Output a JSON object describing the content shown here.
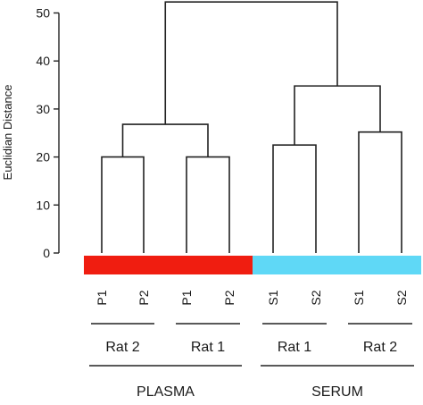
{
  "chart_data": {
    "type": "dendrogram",
    "ylabel": "Euclidian Distance",
    "ylim": [
      0,
      50
    ],
    "yticks": [
      0,
      10,
      20,
      30,
      40,
      50
    ],
    "leaves": [
      "P1",
      "P2",
      "P1",
      "P2",
      "S1",
      "S2",
      "S1",
      "S2"
    ],
    "merges": [
      {
        "id": "A",
        "left": 0,
        "right": 1,
        "height": 20
      },
      {
        "id": "B",
        "left": 2,
        "right": 3,
        "height": 20
      },
      {
        "id": "C",
        "left": 4,
        "right": 5,
        "height": 22.5
      },
      {
        "id": "D",
        "left": 6,
        "right": 7,
        "height": 25.2
      },
      {
        "id": "E",
        "left": "A",
        "right": "B",
        "height": 26.8
      },
      {
        "id": "F",
        "left": "C",
        "right": "D",
        "height": 34.8
      },
      {
        "id": "G",
        "left": "E",
        "right": "F",
        "height": 52.3
      }
    ],
    "groups": [
      {
        "label": "Rat 2",
        "leaves": [
          0,
          1
        ]
      },
      {
        "label": "Rat 1",
        "leaves": [
          2,
          3
        ]
      },
      {
        "label": "Rat 1",
        "leaves": [
          4,
          5
        ]
      },
      {
        "label": "Rat 2",
        "leaves": [
          6,
          7
        ]
      }
    ],
    "sample_types": [
      {
        "label": "PLASMA",
        "leaves": [
          0,
          1,
          2,
          3
        ],
        "color": "#f01d10"
      },
      {
        "label": "SERUM",
        "leaves": [
          4,
          5,
          6,
          7
        ],
        "color": "#5fd8f6"
      }
    ]
  }
}
